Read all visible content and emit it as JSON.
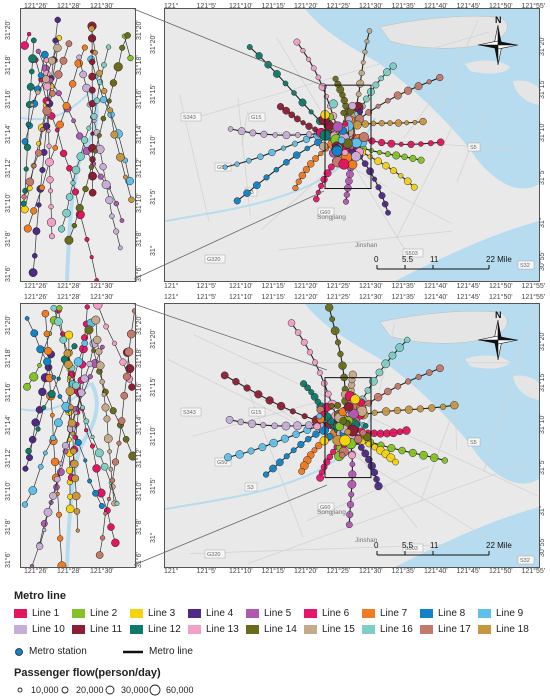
{
  "panels": [
    {
      "inset": {
        "x_ticks": [
          "121°26'",
          "121°28'",
          "121°30'"
        ],
        "y_ticks": [
          "31°20'",
          "31°18'",
          "31°16'",
          "31°14'",
          "31°12'",
          "31°10'",
          "31°8'",
          "31°6'"
        ]
      },
      "main": {
        "x_ticks": [
          "121°",
          "121°5'",
          "121°10'",
          "121°15'",
          "121°20'",
          "121°25'",
          "121°30'",
          "121°35'",
          "121°40'",
          "121°45'",
          "121°50'",
          "121°55'"
        ],
        "y_ticks_left": [
          "31°20'",
          "31°15'",
          "31°10'",
          "31°5'",
          "31°"
        ],
        "y_ticks_right": [
          "31°20'",
          "31°15'",
          "31°10'",
          "31°5'",
          "31°",
          "30°55'"
        ],
        "place_labels": [
          "S343",
          "G15",
          "G50",
          "G60",
          "S5",
          "Songjiang",
          "Jinshan",
          "G320",
          "S3",
          "S32",
          "S503"
        ]
      }
    },
    {
      "inset": {
        "x_ticks": [
          "121°26'",
          "121°28'",
          "121°30'"
        ],
        "y_ticks": [
          "31°20'",
          "31°18'",
          "31°16'",
          "31°14'",
          "31°12'",
          "31°10'",
          "31°8'",
          "31°6'"
        ]
      },
      "main": {
        "x_ticks": [
          "121°",
          "121°5'",
          "121°10'",
          "121°15'",
          "121°20'",
          "121°25'",
          "121°30'",
          "121°35'",
          "121°40'",
          "121°45'",
          "121°50'",
          "121°55'"
        ],
        "y_ticks_left": [
          "31°20'",
          "31°15'",
          "31°10'",
          "31°5'",
          "31°"
        ],
        "y_ticks_right": [
          "31°20'",
          "31°15'",
          "31°10'",
          "31°5'",
          "31°",
          "30°55'"
        ],
        "place_labels": [
          "S343",
          "G15",
          "G50",
          "G60",
          "S5",
          "Songjiang",
          "Jinshan",
          "G320",
          "S3",
          "S32",
          "S503"
        ]
      }
    }
  ],
  "north_arrow": "N",
  "scale_bar": {
    "labels": [
      "0",
      "5.5",
      "11",
      "22"
    ],
    "unit": "Mile"
  },
  "legend": {
    "metro_title": "Metro line",
    "lines": [
      {
        "label": "Line 1",
        "color": "#e2155e"
      },
      {
        "label": "Line 2",
        "color": "#84c225"
      },
      {
        "label": "Line 3",
        "color": "#f5d313"
      },
      {
        "label": "Line 4",
        "color": "#4e2a86"
      },
      {
        "label": "Line 5",
        "color": "#b158b0"
      },
      {
        "label": "Line 6",
        "color": "#e8156d"
      },
      {
        "label": "Line 7",
        "color": "#f07b21"
      },
      {
        "label": "Line 8",
        "color": "#1183c7"
      },
      {
        "label": "Line 9",
        "color": "#5ec0ea"
      },
      {
        "label": "Line 10",
        "color": "#c7aed6"
      },
      {
        "label": "Line 11",
        "color": "#8e1e34"
      },
      {
        "label": "Line 12",
        "color": "#0f7a6a"
      },
      {
        "label": "Line 13",
        "color": "#f2a0c8"
      },
      {
        "label": "Line 14",
        "color": "#6b6b1c"
      },
      {
        "label": "Line 15",
        "color": "#c4a98a"
      },
      {
        "label": "Line 16",
        "color": "#7ecfc3"
      },
      {
        "label": "Line 17",
        "color": "#c5796a"
      },
      {
        "label": "Line 18",
        "color": "#c89640"
      }
    ],
    "station_label": "Metro station",
    "line_label": "Metro line",
    "flow_title": "Passenger flow(person/day)",
    "flow_sizes": [
      "10,000",
      "20,000",
      "30,000",
      "60,000"
    ]
  }
}
